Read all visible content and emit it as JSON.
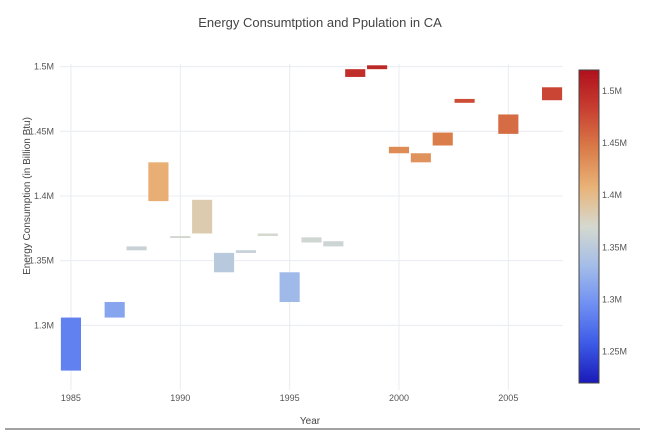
{
  "chart_data": {
    "type": "bar",
    "title": "Energy Consumtption and Ppulation in CA",
    "xlabel": "Year",
    "ylabel": "Energy Consumption (in Billion Btu)",
    "xlim": [
      1984.5,
      2007.5
    ],
    "ylim": [
      1250000.0,
      1502000.0
    ],
    "x_ticks": [
      1985,
      1990,
      1995,
      2000,
      2005
    ],
    "x_tick_labels": [
      "1985",
      "1990",
      "1995",
      "2000",
      "2005"
    ],
    "y_ticks": [
      1300000.0,
      1350000.0,
      1400000.0,
      1450000.0,
      1500000.0
    ],
    "y_tick_labels": [
      "1.3M",
      "1.35M",
      "1.4M",
      "1.45M",
      "1.5M"
    ],
    "grid": true,
    "bars": [
      {
        "x": 1985,
        "base": 1265000,
        "top": 1306000,
        "color_value": 1285000
      },
      {
        "x": 1987,
        "base": 1306000,
        "top": 1318000,
        "color_value": 1312000
      },
      {
        "x": 1988,
        "base": 1358000,
        "top": 1361000,
        "color_value": 1359000
      },
      {
        "x": 1989,
        "base": 1396000,
        "top": 1426000,
        "color_value": 1411000
      },
      {
        "x": 1990,
        "base": 1368000,
        "top": 1369000,
        "color_value": 1368000
      },
      {
        "x": 1991,
        "base": 1371000,
        "top": 1397000,
        "color_value": 1384000
      },
      {
        "x": 1992,
        "base": 1341000,
        "top": 1356000,
        "color_value": 1348000
      },
      {
        "x": 1993,
        "base": 1356000,
        "top": 1358000,
        "color_value": 1357000
      },
      {
        "x": 1994,
        "base": 1369000,
        "top": 1371000,
        "color_value": 1370000
      },
      {
        "x": 1995,
        "base": 1318000,
        "top": 1341000,
        "color_value": 1329000
      },
      {
        "x": 1996,
        "base": 1364000,
        "top": 1368000,
        "color_value": 1366000
      },
      {
        "x": 1997,
        "base": 1361000,
        "top": 1365000,
        "color_value": 1363000
      },
      {
        "x": 1998,
        "base": 1492000,
        "top": 1498000,
        "color_value": 1495000
      },
      {
        "x": 1999,
        "base": 1498000,
        "top": 1501000,
        "color_value": 1500000
      },
      {
        "x": 2000,
        "base": 1433000,
        "top": 1438000,
        "color_value": 1435000
      },
      {
        "x": 2001,
        "base": 1426000,
        "top": 1433000,
        "color_value": 1430000
      },
      {
        "x": 2002,
        "base": 1439000,
        "top": 1449000,
        "color_value": 1444000
      },
      {
        "x": 2003,
        "base": 1472000,
        "top": 1475000,
        "color_value": 1474000
      },
      {
        "x": 2005,
        "base": 1448000,
        "top": 1463000,
        "color_value": 1455000
      },
      {
        "x": 2007,
        "base": 1474000,
        "top": 1484000,
        "color_value": 1479000
      }
    ],
    "colorbar": {
      "range": [
        1220000.0,
        1520000.0
      ],
      "ticks": [
        1250000.0,
        1300000.0,
        1350000.0,
        1400000.0,
        1450000.0,
        1500000.0
      ],
      "tick_labels": [
        "1.25M",
        "1.3M",
        "1.35M",
        "1.4M",
        "1.45M",
        "1.5M"
      ],
      "colorscale": [
        "#1a1ab8",
        "#3c5ae6",
        "#6f8ff3",
        "#a4bde8",
        "#d5d9cf",
        "#e9b378",
        "#da7c49",
        "#c83f31",
        "#b0101c"
      ]
    }
  }
}
